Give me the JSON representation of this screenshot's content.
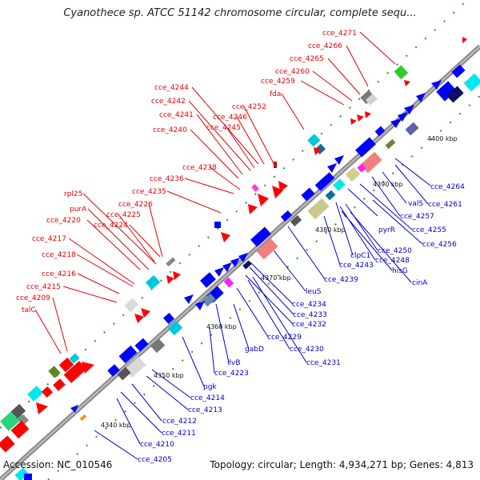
{
  "title": "Cyanothece sp. ATCC 51142 chromosome circular, complete sequ...",
  "footer": {
    "accession": "Accession: NC_010546",
    "info": "Topology: circular; Length: 4,934,271 bp; Genes: 4,813"
  },
  "colors": {
    "forward_label": "#e60000",
    "reverse_label": "#0000cc",
    "axis": "#888888",
    "tick": "#2e8b2e"
  },
  "kbp_ticks": [
    "4340 kbp",
    "4350 kbp",
    "4360 kbp",
    "4370 kbp",
    "4380 kbp",
    "4390 kbp",
    "4400 kbp"
  ],
  "labels_top": [
    "cce_4271",
    "cce_4266",
    "cce_4265",
    "cce_4260",
    "cce_4259",
    "fda",
    "cce_4244",
    "cce_4242",
    "cce_4241",
    "cce_4240",
    "cce_4252",
    "cce_4246",
    "cce_4245",
    "cce_4238",
    "cce_4236",
    "cce_4235",
    "rpl25",
    "cce_4226",
    "purA",
    "cce_4225",
    "cce_4220",
    "cce_4224",
    "cce_4217",
    "cce_4218",
    "cce_4216",
    "cce_4215",
    "cce_4209",
    "talC"
  ],
  "labels_bottom": [
    "cce_4264",
    "cce_4261",
    "valS",
    "cce_4257",
    "cce_4255",
    "pyrR",
    "cce_4256",
    "clpC1",
    "cce_4250",
    "cce_4248",
    "cce_4243",
    "hisG",
    "cinA",
    "cce_4239",
    "leuS",
    "cce_4234",
    "cce_4233",
    "cce_4232",
    "cce_4229",
    "gabD",
    "cce_4230",
    "cce_4231",
    "ilvB",
    "cce_4223",
    "pgk",
    "cce_4214",
    "cce_4213",
    "cce_4212",
    "cce_4211",
    "cce_4210",
    "cce_4205"
  ]
}
